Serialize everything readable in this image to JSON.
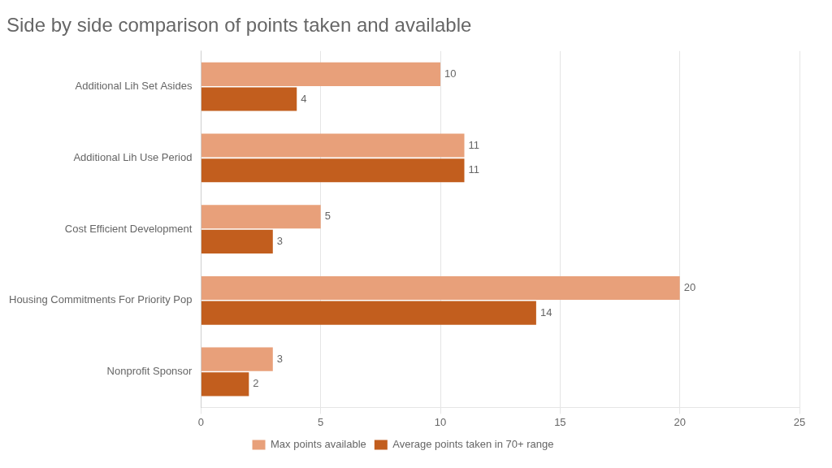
{
  "chart_data": {
    "type": "bar",
    "orientation": "horizontal",
    "title": "Side by side comparison of points taken and available",
    "categories": [
      "Nonprofit Sponsor",
      "Housing Commitments For Priority Pop",
      "Cost Efficient Development",
      "Additional Lih Use Period",
      "Additional Lih Set Asides"
    ],
    "series": [
      {
        "name": "Max points available",
        "color": "#E8A07A",
        "values": [
          3,
          20,
          5,
          11,
          10
        ]
      },
      {
        "name": "Average points taken in 70+ range",
        "color": "#C25E1E",
        "values": [
          2,
          14,
          3,
          11,
          4
        ]
      }
    ],
    "xlim": [
      0,
      25
    ],
    "xticks": [
      0,
      5,
      10,
      15,
      20,
      25
    ],
    "grid": true,
    "legend": "bottom",
    "data_labels": true
  }
}
